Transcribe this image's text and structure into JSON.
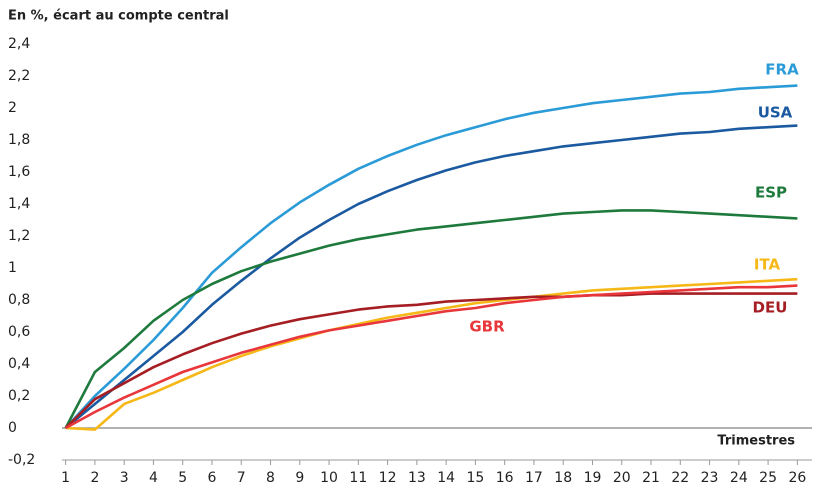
{
  "chart_data": {
    "type": "line",
    "title": "En %, écart au compte central",
    "x_label": "Trimestres",
    "x": [
      1,
      2,
      3,
      4,
      5,
      6,
      7,
      8,
      9,
      10,
      11,
      12,
      13,
      14,
      15,
      16,
      17,
      18,
      19,
      20,
      21,
      22,
      23,
      24,
      25,
      26
    ],
    "xlim": [
      0.5,
      26.5
    ],
    "xticks": [
      1,
      2,
      3,
      4,
      5,
      6,
      7,
      8,
      9,
      10,
      11,
      12,
      13,
      14,
      15,
      16,
      17,
      18,
      19,
      20,
      21,
      22,
      23,
      24,
      25,
      26
    ],
    "ylim": [
      -0.2,
      2.4
    ],
    "yticks": [
      {
        "value": -0.2,
        "label": "-0,2"
      },
      0,
      {
        "value": 0.2,
        "label": "0,2"
      },
      {
        "value": 0.4,
        "label": "0,4"
      },
      {
        "value": 0.6,
        "label": "0,6"
      },
      {
        "value": 0.8,
        "label": "0,8"
      },
      1,
      {
        "value": 1.2,
        "label": "1,2"
      },
      {
        "value": 1.4,
        "label": "1,4"
      },
      {
        "value": 1.6,
        "label": "1,6"
      },
      {
        "value": 1.8,
        "label": "1,8"
      },
      2,
      {
        "value": 2.2,
        "label": "2,2"
      },
      {
        "value": 2.4,
        "label": "2,4"
      }
    ],
    "series": [
      {
        "name": "FRA",
        "color": "#2b9bd7",
        "values": [
          0,
          0.2,
          0.37,
          0.55,
          0.75,
          0.97,
          1.13,
          1.28,
          1.41,
          1.52,
          1.62,
          1.7,
          1.77,
          1.83,
          1.88,
          1.93,
          1.97,
          2.0,
          2.03,
          2.05,
          2.07,
          2.09,
          2.1,
          2.12,
          2.13,
          2.14
        ]
      },
      {
        "name": "USA",
        "color": "#1b5aa0",
        "values": [
          0,
          0.15,
          0.3,
          0.45,
          0.6,
          0.77,
          0.92,
          1.06,
          1.19,
          1.3,
          1.4,
          1.48,
          1.55,
          1.61,
          1.66,
          1.7,
          1.73,
          1.76,
          1.78,
          1.8,
          1.82,
          1.84,
          1.85,
          1.87,
          1.88,
          1.89
        ]
      },
      {
        "name": "ESP",
        "color": "#1e7a3c",
        "values": [
          0,
          0.35,
          0.5,
          0.67,
          0.8,
          0.9,
          0.98,
          1.04,
          1.09,
          1.14,
          1.18,
          1.21,
          1.24,
          1.26,
          1.28,
          1.3,
          1.32,
          1.34,
          1.35,
          1.36,
          1.36,
          1.35,
          1.34,
          1.33,
          1.32,
          1.31
        ]
      },
      {
        "name": "ITA",
        "color": "#f6b817",
        "values": [
          0,
          -0.01,
          0.15,
          0.22,
          0.3,
          0.38,
          0.45,
          0.51,
          0.56,
          0.61,
          0.65,
          0.69,
          0.72,
          0.75,
          0.78,
          0.8,
          0.82,
          0.84,
          0.86,
          0.87,
          0.88,
          0.89,
          0.9,
          0.91,
          0.92,
          0.93
        ]
      },
      {
        "name": "DEU",
        "color": "#a51e23",
        "values": [
          0,
          0.18,
          0.28,
          0.38,
          0.46,
          0.53,
          0.59,
          0.64,
          0.68,
          0.71,
          0.74,
          0.76,
          0.77,
          0.79,
          0.8,
          0.81,
          0.82,
          0.82,
          0.83,
          0.83,
          0.84,
          0.84,
          0.84,
          0.84,
          0.84,
          0.84
        ]
      },
      {
        "name": "GBR",
        "color": "#e8363a",
        "values": [
          0,
          0.1,
          0.19,
          0.27,
          0.35,
          0.41,
          0.47,
          0.52,
          0.57,
          0.61,
          0.64,
          0.67,
          0.7,
          0.73,
          0.75,
          0.78,
          0.8,
          0.82,
          0.83,
          0.84,
          0.85,
          0.86,
          0.87,
          0.88,
          0.88,
          0.89
        ]
      }
    ]
  }
}
